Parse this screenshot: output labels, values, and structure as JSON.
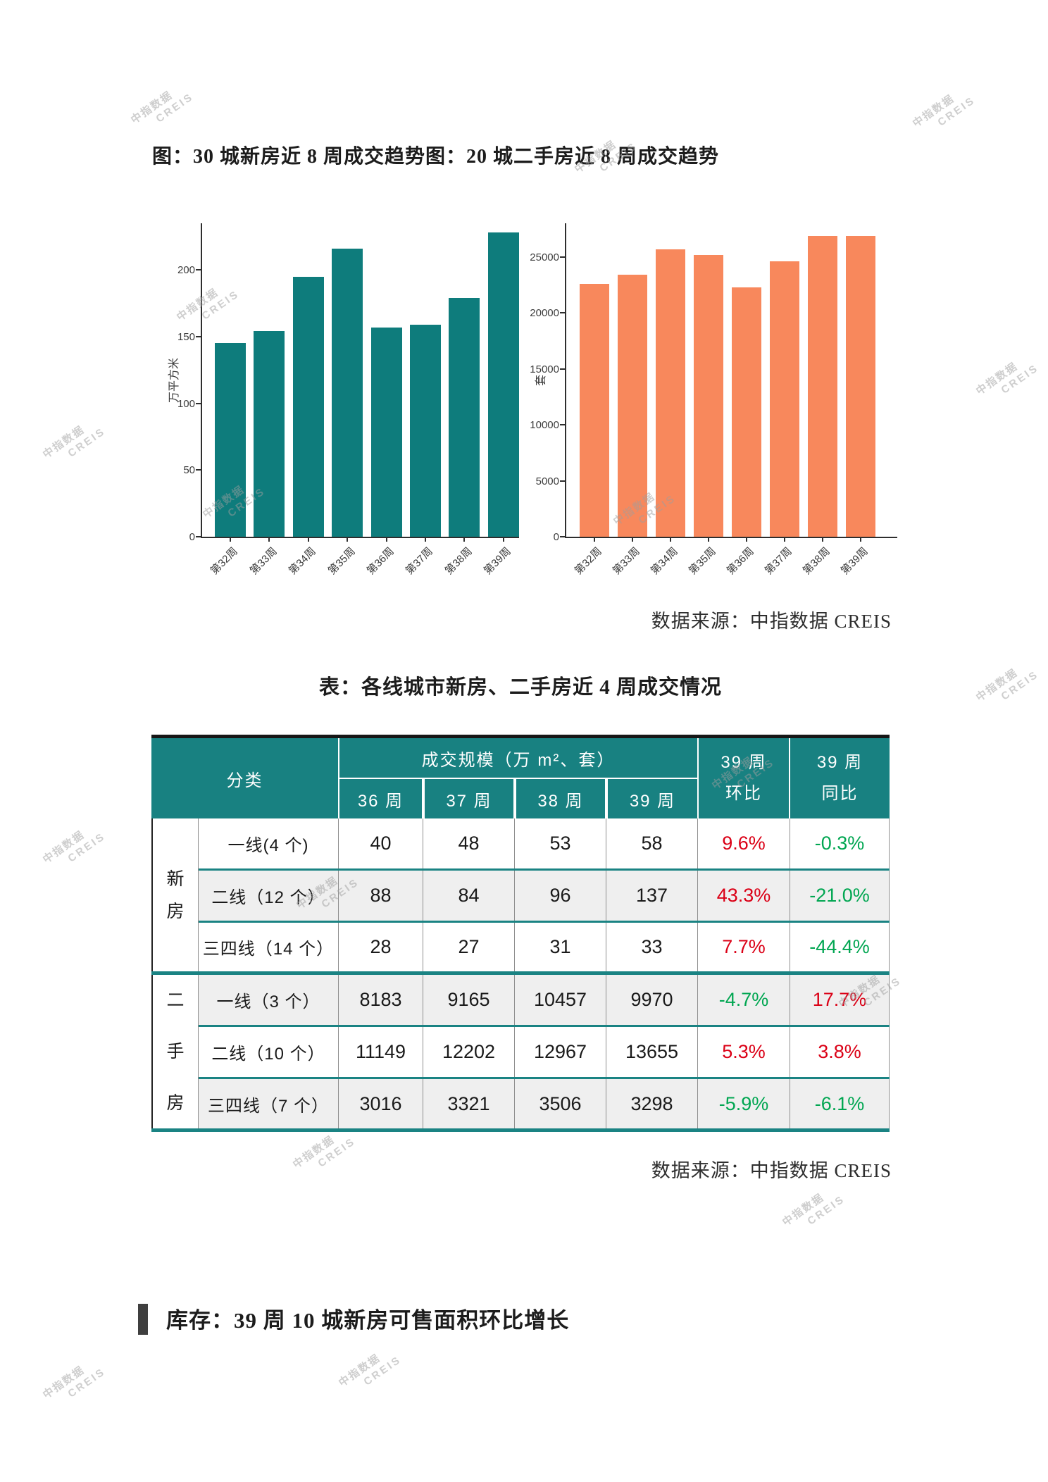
{
  "page": {
    "charts_title": "图：30 城新房近 8 周成交趋势图：20 城二手房近 8 周成交趋势",
    "source_note": "数据来源：中指数据 CREIS",
    "table_title": "表：各线城市新房、二手房近 4 周成交情况",
    "inventory_heading": "库存：39 周 10 城新房可售面积环比增长",
    "watermark_line1": "中指数据",
    "watermark_line2": "CREIS"
  },
  "chart_data": [
    {
      "type": "bar",
      "title": "30 城新房近 8 周成交趋势",
      "categories": [
        "第32周",
        "第33周",
        "第34周",
        "第35周",
        "第36周",
        "第37周",
        "第38周",
        "第39周"
      ],
      "values": [
        145,
        154,
        195,
        216,
        157,
        159,
        179,
        228
      ],
      "xlabel": "",
      "ylabel": "万平方米",
      "yticks": [
        0,
        50,
        100,
        150,
        200
      ],
      "ylim": [
        0,
        235
      ],
      "bar_color": "#0e7c7c",
      "grid": false,
      "legend": "none"
    },
    {
      "type": "bar",
      "title": "20 城二手房近 8 周成交趋势",
      "categories": [
        "第32周",
        "第33周",
        "第34周",
        "第35周",
        "第36周",
        "第37周",
        "第38周",
        "第39周"
      ],
      "values": [
        22600,
        23400,
        25700,
        25200,
        22300,
        24600,
        26850,
        26850
      ],
      "xlabel": "",
      "ylabel": "套",
      "yticks": [
        0,
        5000,
        10000,
        15000,
        20000,
        25000
      ],
      "ylim": [
        0,
        28000
      ],
      "bar_color": "#f8885c",
      "grid": false,
      "legend": "none"
    }
  ],
  "table": {
    "header": {
      "category": "分类",
      "scale_group": "成交规模（万 m²、套）",
      "weeks": [
        "36 周",
        "37 周",
        "38 周",
        "39 周"
      ],
      "wow_line1": "39 周",
      "wow_line2": "环比",
      "yoy_line1": "39 周",
      "yoy_line2": "同比"
    },
    "groups": [
      {
        "label": "新房",
        "rows": [
          {
            "category": "一线(4 个)",
            "values": [
              "40",
              "48",
              "53",
              "58"
            ],
            "wow": "9.6%",
            "wow_tone": "red",
            "yoy": "-0.3%",
            "yoy_tone": "green",
            "shaded": false
          },
          {
            "category": "二线（12 个）",
            "values": [
              "88",
              "84",
              "96",
              "137"
            ],
            "wow": "43.3%",
            "wow_tone": "red",
            "yoy": "-21.0%",
            "yoy_tone": "green",
            "shaded": true
          },
          {
            "category": "三四线（14 个）",
            "values": [
              "28",
              "27",
              "31",
              "33"
            ],
            "wow": "7.7%",
            "wow_tone": "red",
            "yoy": "-44.4%",
            "yoy_tone": "green",
            "shaded": false
          }
        ]
      },
      {
        "label": "二手房",
        "rows": [
          {
            "category": "一线（3 个）",
            "values": [
              "8183",
              "9165",
              "10457",
              "9970"
            ],
            "wow": "-4.7%",
            "wow_tone": "green",
            "yoy": "17.7%",
            "yoy_tone": "red",
            "shaded": true
          },
          {
            "category": "二线（10 个）",
            "values": [
              "11149",
              "12202",
              "12967",
              "13655"
            ],
            "wow": "5.3%",
            "wow_tone": "red",
            "yoy": "3.8%",
            "yoy_tone": "red",
            "shaded": false
          },
          {
            "category": "三四线（7 个）",
            "values": [
              "3016",
              "3321",
              "3506",
              "3298"
            ],
            "wow": "-5.9%",
            "wow_tone": "green",
            "yoy": "-6.1%",
            "yoy_tone": "green",
            "shaded": true
          }
        ]
      }
    ]
  },
  "colors": {
    "teal_bar": "#0e7c7c",
    "orange_bar": "#f8885c",
    "header_teal": "#188181",
    "separator_teal": "#1a8383",
    "row_shade": "#efefef",
    "up_red": "#db0016",
    "down_green": "#00a651",
    "watermark_gray": "#9e9e9e"
  }
}
